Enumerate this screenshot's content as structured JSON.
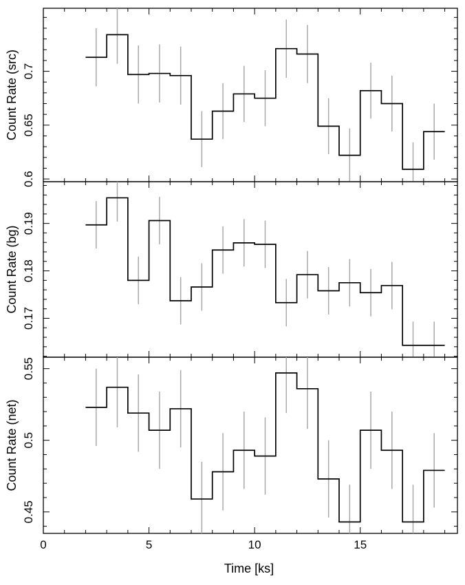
{
  "chart_data": [
    {
      "type": "step",
      "ylabel": "Count Rate (src)",
      "xlim": [
        0,
        19.6
      ],
      "ylim": [
        0.5975,
        0.7585
      ],
      "yticks": [
        0.6,
        0.65,
        0.7
      ],
      "ytick_labels": [
        "0.6",
        "0.65",
        "0.7"
      ],
      "x": [
        2.5,
        3.5,
        4.5,
        5.5,
        6.5,
        7.5,
        8.5,
        9.5,
        10.5,
        11.5,
        12.5,
        13.5,
        14.5,
        15.5,
        16.5,
        17.5,
        18.5
      ],
      "y": [
        0.713,
        0.734,
        0.697,
        0.698,
        0.696,
        0.637,
        0.663,
        0.679,
        0.675,
        0.721,
        0.716,
        0.649,
        0.622,
        0.682,
        0.67,
        0.609,
        0.644
      ],
      "yerr": [
        0.027,
        0.027,
        0.027,
        0.027,
        0.027,
        0.026,
        0.026,
        0.026,
        0.026,
        0.027,
        0.027,
        0.026,
        0.025,
        0.026,
        0.026,
        0.025,
        0.026
      ]
    },
    {
      "type": "step",
      "ylabel": "Count Rate (bg)",
      "xlim": [
        0,
        19.6
      ],
      "ylim": [
        0.1618,
        0.1988
      ],
      "yticks": [
        0.17,
        0.18,
        0.19
      ],
      "ytick_labels": [
        "0.17",
        "0.18",
        "0.19"
      ],
      "x": [
        2.5,
        3.5,
        4.5,
        5.5,
        6.5,
        7.5,
        8.5,
        9.5,
        10.5,
        11.5,
        12.5,
        13.5,
        14.5,
        15.5,
        16.5,
        17.5,
        18.5
      ],
      "y": [
        0.1897,
        0.1954,
        0.178,
        0.1906,
        0.1737,
        0.1766,
        0.1844,
        0.1859,
        0.1856,
        0.1733,
        0.1792,
        0.1758,
        0.1775,
        0.1754,
        0.1769,
        0.1643,
        0.1643
      ],
      "yerr": [
        0.005,
        0.005,
        0.005,
        0.005,
        0.005,
        0.005,
        0.005,
        0.005,
        0.005,
        0.005,
        0.005,
        0.005,
        0.005,
        0.005,
        0.005,
        0.005,
        0.005
      ]
    },
    {
      "type": "step",
      "ylabel": "Count Rate (net)",
      "xlim": [
        0,
        19.6
      ],
      "ylim": [
        0.435,
        0.558
      ],
      "yticks": [
        0.45,
        0.5,
        0.55
      ],
      "ytick_labels": [
        "0.45",
        "0.5",
        "0.55"
      ],
      "x": [
        2.5,
        3.5,
        4.5,
        5.5,
        6.5,
        7.5,
        8.5,
        9.5,
        10.5,
        11.5,
        12.5,
        13.5,
        14.5,
        15.5,
        16.5,
        17.5,
        18.5
      ],
      "y": [
        0.523,
        0.537,
        0.519,
        0.507,
        0.522,
        0.459,
        0.478,
        0.493,
        0.489,
        0.547,
        0.536,
        0.473,
        0.443,
        0.507,
        0.493,
        0.443,
        0.479
      ],
      "yerr": [
        0.027,
        0.028,
        0.027,
        0.027,
        0.027,
        0.026,
        0.027,
        0.027,
        0.027,
        0.028,
        0.028,
        0.027,
        0.026,
        0.027,
        0.027,
        0.026,
        0.026
      ]
    }
  ],
  "xaxis": {
    "label": "Time [ks]",
    "ticks": [
      0,
      5,
      10,
      15
    ],
    "tick_labels": [
      "0",
      "5",
      "10",
      "15"
    ],
    "bin_width": 1.0
  },
  "colors": {
    "step_line": "#000000",
    "error_bar": "#a8a8a8",
    "frame": "#000000"
  }
}
